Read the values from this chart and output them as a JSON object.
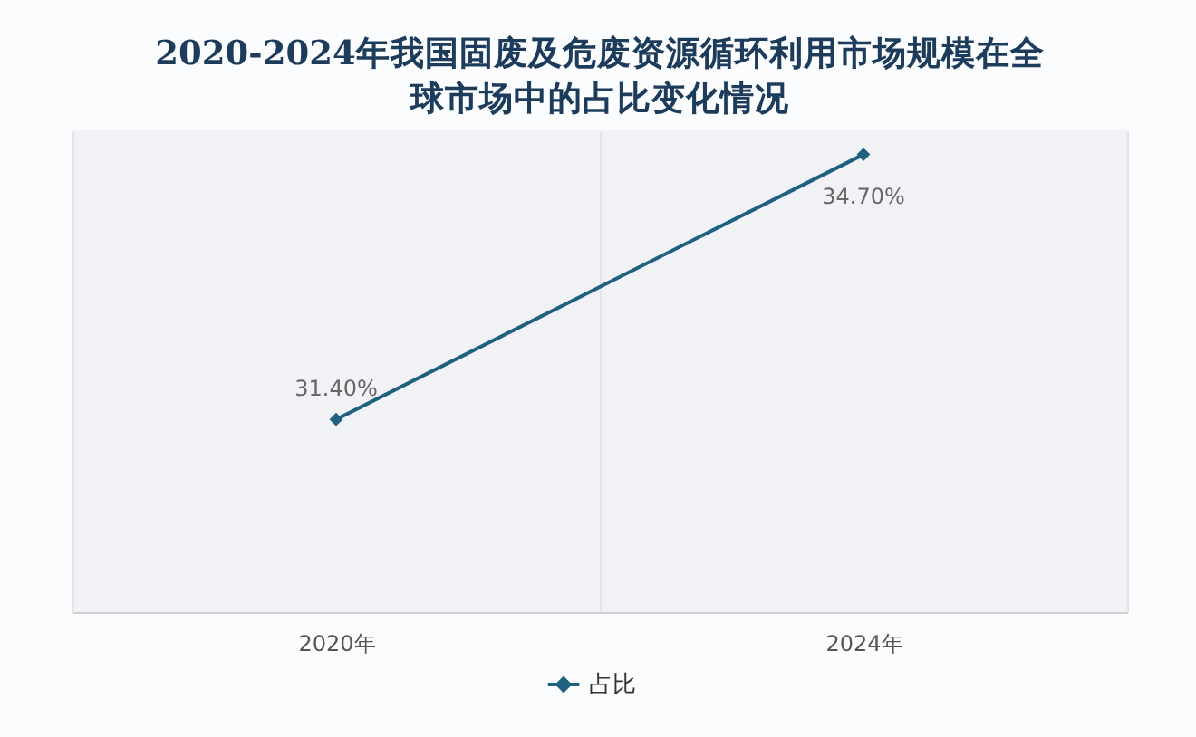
{
  "chart_data": {
    "type": "line",
    "title": "2020-2024年我国固废及危废资源循环利用市场规模在全球市场中的占比变化情况",
    "categories": [
      "2020年",
      "2024年"
    ],
    "series": [
      {
        "name": "占比",
        "color": "#1f5f80",
        "values": [
          31.4,
          34.7
        ],
        "value_labels": [
          "31.40%",
          "34.70%"
        ]
      }
    ],
    "ylim": [
      29,
      35
    ],
    "marker": "diamond",
    "legend": "bottom",
    "grid": "x",
    "tick_labels": "x"
  }
}
